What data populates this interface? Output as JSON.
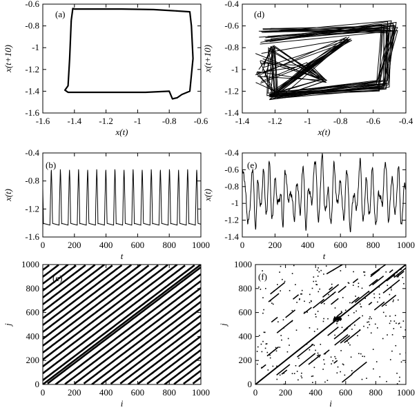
{
  "figure": {
    "background": "#ffffff",
    "line_color": "#000000"
  },
  "chart_data": [
    {
      "id": "a",
      "label": "(a)",
      "type": "line",
      "xlabel": "x(t)",
      "ylabel": "x(t+10)",
      "xlim": [
        -1.6,
        -0.6
      ],
      "ylim": [
        -1.6,
        -0.6
      ],
      "xticks": [
        -1.6,
        -1.4,
        -1.2,
        -1,
        -0.8,
        -0.6
      ],
      "yticks": [
        -1.6,
        -1.4,
        -1.2,
        -1,
        -0.8,
        -0.6
      ],
      "xtick_labels": [
        "-1.6",
        "-1.4",
        "-1.2",
        "-1",
        "-0.8",
        "-0.6"
      ],
      "ytick_labels": [
        "-1.6",
        "-1.4",
        "-1.2",
        "-1",
        "-0.8",
        "-0.6"
      ],
      "series": [
        {
          "x": [
            -1.42,
            -1.41,
            -1.4,
            -1.32,
            -1.1,
            -0.9,
            -0.78,
            -0.67,
            -0.66,
            -0.65,
            -0.67,
            -0.72,
            -0.75,
            -0.78,
            -0.8,
            -0.95,
            -1.2,
            -1.44,
            -1.46,
            -1.44,
            -1.43,
            -1.42
          ],
          "y": [
            -0.75,
            -0.64,
            -0.645,
            -0.645,
            -0.645,
            -0.65,
            -0.66,
            -0.67,
            -0.8,
            -1.1,
            -1.4,
            -1.43,
            -1.46,
            -1.47,
            -1.4,
            -1.41,
            -1.41,
            -1.41,
            -1.39,
            -1.35,
            -1.1,
            -0.75
          ]
        }
      ]
    },
    {
      "id": "b",
      "label": "(b)",
      "type": "line",
      "xlabel": "t",
      "ylabel": "x(t)",
      "xlim": [
        0,
        1000
      ],
      "ylim": [
        -1.6,
        -0.4
      ],
      "xticks": [
        0,
        200,
        400,
        600,
        800,
        1000
      ],
      "yticks": [
        -1.6,
        -1.2,
        -0.8,
        -0.4
      ],
      "xtick_labels": [
        "0",
        "200",
        "400",
        "600",
        "800",
        "1000"
      ],
      "ytick_labels": [
        "-1.6",
        "-1.2",
        "-0.8",
        "-0.4"
      ],
      "waveform": {
        "kind": "periodic",
        "period": 57.5,
        "min": -1.43,
        "max": -0.63,
        "phase": 12
      }
    },
    {
      "id": "c",
      "label": "(c)",
      "type": "heatmap",
      "xlabel": "i",
      "ylabel": "j",
      "xlim": [
        0,
        1000
      ],
      "ylim": [
        0,
        1000
      ],
      "xticks": [
        0,
        200,
        400,
        600,
        800,
        1000
      ],
      "yticks": [
        0,
        200,
        400,
        600,
        800,
        1000
      ],
      "xtick_labels": [
        "0",
        "200",
        "400",
        "600",
        "800",
        "1000"
      ],
      "ytick_labels": [
        "0",
        "200",
        "400",
        "600",
        "800",
        "1000"
      ],
      "recurrence": {
        "kind": "periodic",
        "period": 57.5,
        "diagonal_offsets": [
          -1000,
          -942.5,
          -885,
          -827.5,
          -770,
          -712.5,
          -655,
          -597.5,
          -540,
          -482.5,
          -425,
          -367.5,
          -310,
          -252.5,
          -195,
          -137.5,
          -80,
          -22.5,
          0,
          35,
          92.5,
          150,
          207.5,
          265,
          322.5,
          380,
          437.5,
          495,
          552.5,
          610,
          667.5,
          725,
          782.5,
          840,
          897.5,
          955
        ]
      }
    },
    {
      "id": "d",
      "label": "(d)",
      "type": "line",
      "xlabel": "x(t)",
      "ylabel": "x(t+10)",
      "xlim": [
        -1.4,
        -0.4
      ],
      "ylim": [
        -1.4,
        -0.4
      ],
      "xticks": [
        -1.4,
        -1.2,
        -1,
        -0.8,
        -0.6,
        -0.4
      ],
      "yticks": [
        -1.4,
        -1.2,
        -1,
        -0.8,
        -0.6,
        -0.4
      ],
      "xtick_labels": [
        "-1.4",
        "-1.2",
        "-1",
        "-0.8",
        "-0.6",
        "-0.4"
      ],
      "ytick_labels": [
        "-1.4",
        "-1.2",
        "-1",
        "-0.8",
        "-0.6",
        "-0.4"
      ],
      "attractor": "chaotic"
    },
    {
      "id": "e",
      "label": "(e)",
      "type": "line",
      "xlabel": "t",
      "ylabel": "x(t)",
      "xlim": [
        0,
        1000
      ],
      "ylim": [
        -1.4,
        -0.4
      ],
      "xticks": [
        0,
        200,
        400,
        600,
        800,
        1000
      ],
      "yticks": [
        -1.4,
        -1.2,
        -1,
        -0.8,
        -0.6,
        -0.4
      ],
      "xtick_labels": [
        "0",
        "200",
        "400",
        "600",
        "800",
        "1000"
      ],
      "ytick_labels": [
        "-1.4",
        "-1.2",
        "-1",
        "-0.8",
        "-0.6",
        "-0.4"
      ],
      "peaks": [
        {
          "t": 8,
          "v": -0.65
        },
        {
          "t": 65,
          "v": -0.6
        },
        {
          "t": 95,
          "v": -0.75
        },
        {
          "t": 130,
          "v": -0.62
        },
        {
          "t": 165,
          "v": -0.52
        },
        {
          "t": 200,
          "v": -0.72
        },
        {
          "t": 235,
          "v": -0.9
        },
        {
          "t": 262,
          "v": -0.6
        },
        {
          "t": 300,
          "v": -0.88
        },
        {
          "t": 335,
          "v": -0.75
        },
        {
          "t": 372,
          "v": -0.55
        },
        {
          "t": 405,
          "v": -0.82
        },
        {
          "t": 445,
          "v": -0.48
        },
        {
          "t": 488,
          "v": -0.44
        },
        {
          "t": 525,
          "v": -0.85
        },
        {
          "t": 560,
          "v": -0.55
        },
        {
          "t": 600,
          "v": -0.75
        },
        {
          "t": 640,
          "v": -0.6
        },
        {
          "t": 680,
          "v": -0.9
        },
        {
          "t": 720,
          "v": -0.5
        },
        {
          "t": 758,
          "v": -0.72
        },
        {
          "t": 795,
          "v": -0.6
        },
        {
          "t": 835,
          "v": -0.88
        },
        {
          "t": 875,
          "v": -0.5
        },
        {
          "t": 915,
          "v": -0.7
        },
        {
          "t": 955,
          "v": -0.58
        },
        {
          "t": 990,
          "v": -0.8
        }
      ],
      "troughs": [
        -1.22,
        -1.3,
        -1.05,
        -1.15,
        -1.2,
        -1.0,
        -1.25,
        -0.95,
        -1.18,
        -1.1,
        -1.28,
        -0.98,
        -1.2,
        -1.1,
        -1.25,
        -1.0,
        -1.18,
        -1.3,
        -1.05,
        -1.22,
        -1.15,
        -1.25,
        -1.0,
        -1.2,
        -1.12,
        -1.28,
        -1.3
      ]
    },
    {
      "id": "f",
      "label": "(f)",
      "type": "heatmap",
      "xlabel": "i",
      "ylabel": "j",
      "xlim": [
        0,
        1000
      ],
      "ylim": [
        0,
        1000
      ],
      "xticks": [
        0,
        200,
        400,
        600,
        800,
        1000
      ],
      "yticks": [
        0,
        200,
        400,
        600,
        800,
        1000
      ],
      "xtick_labels": [
        "0",
        "200",
        "400",
        "600",
        "800",
        "1000"
      ],
      "ytick_labels": [
        "0",
        "200",
        "400",
        "600",
        "800",
        "1000"
      ],
      "recurrence": {
        "kind": "chaotic",
        "main_diagonal": true,
        "dense_cluster_center": [
          540,
          550
        ]
      }
    }
  ]
}
